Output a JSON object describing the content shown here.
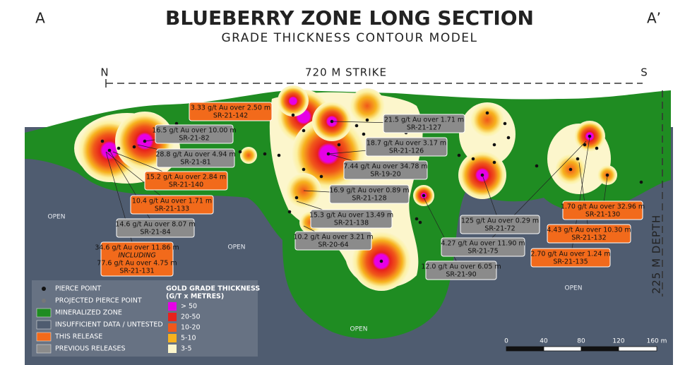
{
  "header": {
    "title": "BLUEBERRY ZONE LONG SECTION",
    "subtitle": "GRADE THICKNESS CONTOUR MODEL",
    "left_marker": "A",
    "right_marker": "A’"
  },
  "strike": {
    "label": "720 M STRIKE",
    "north": "N",
    "south": "S"
  },
  "depth": {
    "label": "225 M DEPTH"
  },
  "this_release": [
    {
      "lines": [
        "3.33 g/t Au over 2.50 m",
        "SR-21-142"
      ]
    },
    {
      "lines": [
        "15.2 g/t Au over 2.84 m",
        "SR-21-140"
      ]
    },
    {
      "lines": [
        "10.4 g/t Au over 1.71 m",
        "SR-21-133"
      ]
    },
    {
      "lines": [
        "34.6 g/t Au over 11.86 m",
        "INCLUDING",
        "77.6 g/t Au over 4.75 m",
        "SR-21-131"
      ]
    },
    {
      "lines": [
        "1.70 g/t Au over 32.96 m",
        "SR-21-130"
      ]
    },
    {
      "lines": [
        "4.43 g/t Au over 10.30 m",
        "SR-21-132"
      ]
    },
    {
      "lines": [
        "2.70 g/t Au over 1.24 m",
        "SR-21-135"
      ]
    }
  ],
  "previous_releases": [
    {
      "lines": [
        "16.5 g/t Au over 10.00 m",
        "SR-21-82"
      ]
    },
    {
      "lines": [
        "28.8 g/t Au over 4.94 m",
        "SR-21-81"
      ]
    },
    {
      "lines": [
        "14.6 g/t Au over 8.07 m",
        "SR-21-84"
      ]
    },
    {
      "lines": [
        "21.5 g/t Au over 1.71 m",
        "SR-21-127"
      ]
    },
    {
      "lines": [
        "18.7 g/t Au over 3.17 m",
        "SR-21-126"
      ]
    },
    {
      "lines": [
        "7.44 g/t Au over 34.78 m",
        "SR-19-20"
      ]
    },
    {
      "lines": [
        "16.9 g/t Au over 0.89 m",
        "SR-21-128"
      ]
    },
    {
      "lines": [
        "15.3 g/t Au over 13.49 m",
        "SR-21-138"
      ]
    },
    {
      "lines": [
        "10.2 g/t Au over 3.21 m",
        "SR-20-64"
      ]
    },
    {
      "lines": [
        "125 g/t Au over 0.29 m",
        "SR-21-72"
      ]
    },
    {
      "lines": [
        "4.27 g/t Au over 11.90 m",
        "SR-21-75"
      ]
    },
    {
      "lines": [
        "12.0 g/t Au over 6.05 m",
        "SR-21-90"
      ]
    }
  ],
  "open_labels": [
    "OPEN",
    "OPEN",
    "OPEN",
    "OPEN"
  ],
  "legend": {
    "items": [
      "PIERCE POINT",
      "PROJECTED PIERCE POINT",
      "MINERALIZED ZONE",
      "INSUFFICIENT DATA / UNTESTED",
      "THIS RELEASE",
      "PREVIOUS RELEASES"
    ],
    "grade_title": "GOLD GRADE THICKNESS",
    "grade_units": "(G/T x METRES)",
    "grades": [
      "> 50",
      "20-50",
      "10-20",
      "5-10",
      "3-5"
    ]
  },
  "scale": [
    "0",
    "40",
    "80",
    "120",
    "160 m"
  ]
}
